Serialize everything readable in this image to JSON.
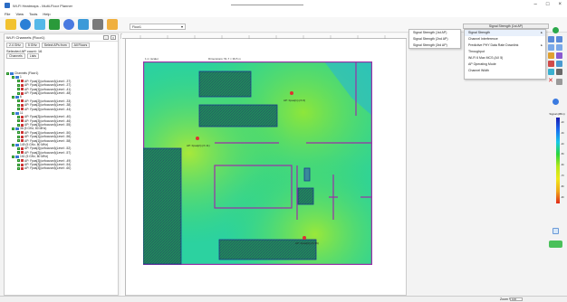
{
  "window": {
    "title": "Wi-Fi Heatmaps - Multi-Floor Planner"
  },
  "menu": {
    "items": [
      "File",
      "View",
      "Tools",
      "Help"
    ]
  },
  "floor_selector": {
    "value": "Floor1"
  },
  "visualization": {
    "selected": "Signal Strength (1st AP)"
  },
  "left_panel": {
    "header": "Wi-Fi Channels (Floor1)",
    "bands": [
      "2.4 GHz",
      "5 GHz",
      "Select APs from",
      "All Floors"
    ],
    "selected_count_label": "Selected AP count: 16",
    "tabs": [
      "Channels",
      "Lists"
    ],
    "tree": [
      {
        "level": 0,
        "type": "root",
        "text": "Channels (Floor1)"
      },
      {
        "level": 1,
        "type": "group",
        "text": "1"
      },
      {
        "level": 2,
        "type": "ap",
        "text": "AP: Fpas[1](unfocused)(Level: -37)"
      },
      {
        "level": 2,
        "type": "ap",
        "text": "AP: Fpas[1](unfocused)(Level: -37)"
      },
      {
        "level": 2,
        "type": "ap",
        "text": "AP: Fpas[1](unfocused)(Level: -41)"
      },
      {
        "level": 2,
        "type": "ap",
        "text": "AP: Fpas[1](unfocused)(Level: -48)"
      },
      {
        "level": 1,
        "type": "group",
        "text": "6"
      },
      {
        "level": 2,
        "type": "ap",
        "text": "AP: Fpas[2](unfocused)(Level: -33)"
      },
      {
        "level": 2,
        "type": "ap",
        "text": "AP: Fpas[2](unfocused)(Level: -38)"
      },
      {
        "level": 2,
        "type": "ap",
        "text": "AP: Fpas[2](unfocused)(Level: -44)"
      },
      {
        "level": 1,
        "type": "group",
        "text": "11"
      },
      {
        "level": 2,
        "type": "ap",
        "text": "AP: Fpas[3](unfocused)(Level: -40)"
      },
      {
        "level": 2,
        "type": "ap",
        "text": "AP: Fpas[3](unfocused)(Level: -46)"
      },
      {
        "level": 2,
        "type": "ap",
        "text": "AP: Fpas[3](unfocused)(Level: -55)"
      },
      {
        "level": 1,
        "type": "group",
        "text": "36 (5 GHz, 80 MHz)"
      },
      {
        "level": 2,
        "type": "ap",
        "text": "AP: Fpas[1](unfocused)(Level: -50)"
      },
      {
        "level": 2,
        "type": "ap",
        "text": "AP: Fpas[1](unfocused)(Level: -56)"
      },
      {
        "level": 2,
        "type": "ap",
        "text": "AP: Fpas[1](unfocused)(Level: -58)"
      },
      {
        "level": 1,
        "type": "group",
        "text": "149 (5 GHz, 80 MHz)"
      },
      {
        "level": 2,
        "type": "ap",
        "text": "AP: Fpas[2](unfocused)(Level: -52)"
      },
      {
        "level": 2,
        "type": "ap",
        "text": "AP: Fpas[2](unfocused)(Level: -57)"
      },
      {
        "level": 1,
        "type": "group",
        "text": "161 (5 GHz, 80 MHz)"
      },
      {
        "level": 2,
        "type": "ap",
        "text": "AP: Fpas[3](unfocused)(Level: -49)"
      },
      {
        "level": 2,
        "type": "ap",
        "text": "AP: Fpas[3](unfocused)(Level: -54)"
      },
      {
        "level": 2,
        "type": "ap",
        "text": "AP: Fpas[3](unfocused)(Level: -60)"
      }
    ]
  },
  "map": {
    "scale_label": "1 m  (scale)",
    "dimension_label": "Dimensions: 51.7 × 39.5 m",
    "ap_labels": [
      "AP: Fpas[1] (ch 6)",
      "AP: Fpas[2] (ch 11)",
      "AP: Fpas[3] (ch 36)"
    ]
  },
  "submenu_left": {
    "items": [
      "Signal Strength (1st AP)",
      "Signal Strength (2nd AP)",
      "Signal Strength (3rd AP)"
    ]
  },
  "submenu_right": {
    "items": [
      "Signal Strength",
      "Channel Interference",
      "Predictive PHY Data Rate Downlink",
      "Throughput",
      "Wi-Fi 6 Max MCS (AX 5)",
      "AP Operating Mode",
      "Channel Width"
    ]
  },
  "legend": {
    "title": "Signal (dBm)",
    "ticks": [
      "-20",
      "-30",
      "-40",
      "-50",
      "-60",
      "-70",
      "-80",
      "-90"
    ]
  },
  "status": {
    "zoom_label": "Zoom %",
    "zoom_value": "100"
  },
  "colors": {
    "accent": "#2b6cc4",
    "wall": "#9a2fa8",
    "obstacle": "#1a3a8a"
  }
}
